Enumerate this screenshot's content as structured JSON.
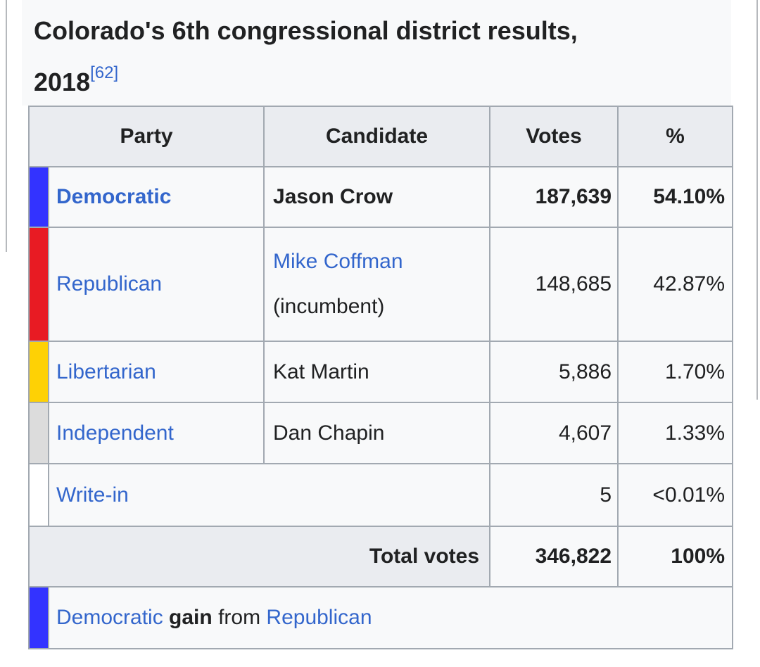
{
  "page": {
    "title_line1": "Colorado's 6th congressional district results,",
    "title_line2": "2018",
    "title_ref": "[62]"
  },
  "colors": {
    "democratic_swatch": "#3333FF",
    "republican_swatch": "#E81B23",
    "libertarian_swatch": "#FED105",
    "independent_swatch": "#DCDCDC",
    "write_in_swatch": "#FFFFFF",
    "link": "#3366CC",
    "header_bg": "#EAECF0",
    "cell_bg": "#F8F9FA",
    "border": "#A2A9B1"
  },
  "table": {
    "headers": {
      "party": "Party",
      "candidate": "Candidate",
      "votes": "Votes",
      "percent": "%"
    },
    "rows": [
      {
        "party": "Democratic",
        "candidate": "Jason Crow",
        "votes": "187,639",
        "percent": "54.10%",
        "swatch": "#3333FF"
      },
      {
        "party": "Republican",
        "candidate": "Mike Coffman",
        "candidate_note": "(incumbent)",
        "votes": "148,685",
        "percent": "42.87%",
        "swatch": "#E81B23"
      },
      {
        "party": "Libertarian",
        "candidate": "Kat Martin",
        "votes": "5,886",
        "percent": "1.70%",
        "swatch": "#FED105"
      },
      {
        "party": "Independent",
        "candidate": "Dan Chapin",
        "votes": "4,607",
        "percent": "1.33%",
        "swatch": "#DCDCDC"
      },
      {
        "party": "Write-in",
        "candidate": "",
        "votes": "5",
        "percent": "<0.01%",
        "swatch": "#FFFFFF"
      }
    ],
    "total": {
      "label": "Total votes",
      "votes": "346,822",
      "percent": "100%"
    },
    "result": {
      "party_to": "Democratic",
      "change": "gain",
      "connector": "from",
      "party_from": "Republican",
      "swatch": "#3333FF"
    }
  }
}
